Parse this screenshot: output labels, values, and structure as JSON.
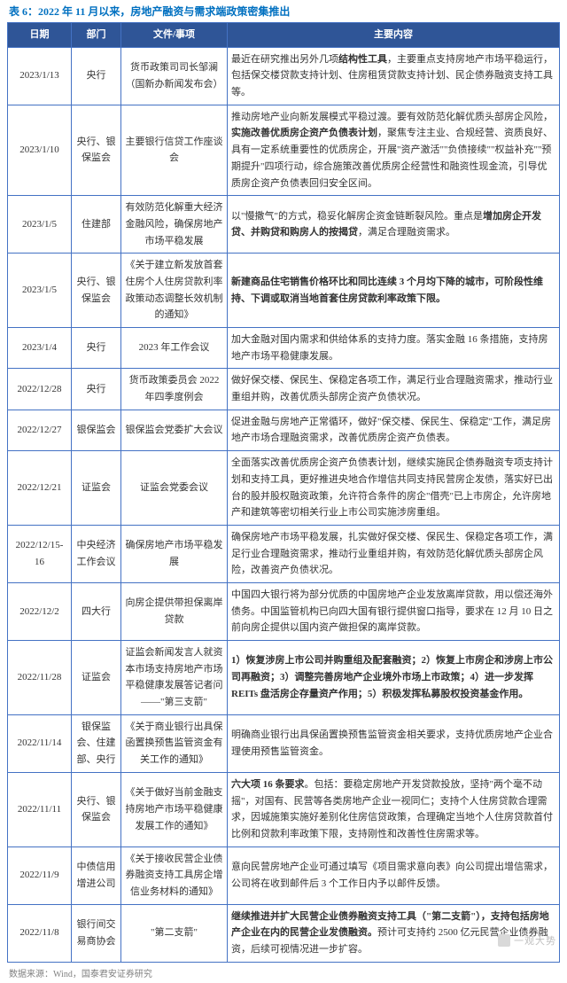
{
  "title": "表 6：2022 年 11 月以来，房地产融资与需求端政策密集推出",
  "source": "数据来源：Wind，国泰君安证券研究",
  "watermark": "一观大势",
  "headers": [
    "日期",
    "部门",
    "文件/事项",
    "主要内容"
  ],
  "colors": {
    "header_bg": "#2f5597",
    "header_fg": "#ffffff",
    "border": "#4472c4",
    "title_fg": "#0070c0",
    "body_fg": "#333333",
    "source_fg": "#808080",
    "watermark_fg": "#bfbfbf"
  },
  "rows": [
    {
      "date": "2023/1/13",
      "dept": "央行",
      "doc": "货币政策司司长邹澜（国新办新闻发布会）",
      "main_pre": "最近在研究推出另外几项",
      "main_bold1": "结构性工具",
      "main_post": "，主要重点支持房地产市场平稳运行，包括保交楼贷款支持计划、住房租赁贷款支持计划、民企债券融资支持工具等。"
    },
    {
      "date": "2023/1/10",
      "dept": "央行、银保监会",
      "doc": "主要银行信贷工作座谈会",
      "main_pre": "推动房地产业向新发展模式平稳过渡。要有效防范化解优质头部房企风险，",
      "main_bold1": "实施改善优质房企资产负债表计划",
      "main_post": "，聚焦专注主业、合规经营、资质良好、具有一定系统重要性的优质房企，开展\"资产激活\"\"负债接续\"\"权益补充\"\"预期提升\"四项行动，综合施策改善优质房企经营性和融资性现金流，引导优质房企资产负债表回归安全区间。"
    },
    {
      "date": "2023/1/5",
      "dept": "住建部",
      "doc": "有效防范化解重大经济金融风险，确保房地产市场平稳发展",
      "main_pre": "以\"慢撒气\"的方式，稳妥化解房企资金链断裂风险。重点是",
      "main_bold1": "增加房企开发贷、并购贷和购房人的按揭贷",
      "main_post": "，满足合理融资需求。"
    },
    {
      "date": "2023/1/5",
      "dept": "央行、银保监会",
      "doc": "《关于建立新发放首套住房个人住房贷款利率政策动态调整长效机制的通知》",
      "main_pre": "",
      "main_bold1": "新建商品住宅销售价格环比和同比连续 3 个月均下降的城市，可阶段性维持、下调或取消当地首套住房贷款利率政策下限。",
      "main_post": ""
    },
    {
      "date": "2023/1/4",
      "dept": "央行",
      "doc": "2023 年工作会议",
      "main_pre": "加大金融对国内需求和供给体系的支持力度。落实金融 16 条措施，支持房地产市场平稳健康发展。",
      "main_bold1": "",
      "main_post": ""
    },
    {
      "date": "2022/12/28",
      "dept": "央行",
      "doc": "货币政策委员会 2022 年四季度例会",
      "main_pre": "做好保交楼、保民生、保稳定各项工作，满足行业合理融资需求，推动行业重组并购，改善优质头部房企资产负债状况。",
      "main_bold1": "",
      "main_post": ""
    },
    {
      "date": "2022/12/27",
      "dept": "银保监会",
      "doc": "银保监会党委扩大会议",
      "main_pre": "促进金融与房地产正常循环，做好\"保交楼、保民生、保稳定\"工作，满足房地产市场合理融资需求，改善优质房企资产负债表。",
      "main_bold1": "",
      "main_post": ""
    },
    {
      "date": "2022/12/21",
      "dept": "证监会",
      "doc": "证监会党委会议",
      "main_pre": "全面落实改善优质房企资产负债表计划，继续实施民企债券融资专项支持计划和支持工具，更好推进央地合作增信共同支持民营房企发债，落实好已出台的股并股权融资政策，允许符合条件的房企\"借壳\"已上市房企，允许房地产和建筑等密切相关行业上市公司实施涉房重组。",
      "main_bold1": "",
      "main_post": ""
    },
    {
      "date": "2022/12/15-16",
      "dept": "中央经济工作会议",
      "doc": "确保房地产市场平稳发展",
      "main_pre": "确保房地产市场平稳发展，扎实做好保交楼、保民生、保稳定各项工作，满足行业合理融资需求，推动行业重组并购，有效防范化解优质头部房企风险，改善资产负债状况。",
      "main_bold1": "",
      "main_post": ""
    },
    {
      "date": "2022/12/2",
      "dept": "四大行",
      "doc": "向房企提供带担保离岸贷款",
      "main_pre": "中国四大银行将为部分优质的中国房地产企业发放离岸贷款，用以偿还海外债务。中国监管机构已向四大国有银行提供窗口指导，要求在 12 月 10 日之前向房企提供以国内资产做担保的离岸贷款。",
      "main_bold1": "",
      "main_post": ""
    },
    {
      "date": "2022/11/28",
      "dept": "证监会",
      "doc": "证监会新闻发言人就资本市场支持房地产市场平稳健康发展答记者问——\"第三支箭\"",
      "main_pre": "",
      "main_bold1": "1）恢复涉房上市公司并购重组及配套融资；2）恢复上市房企和涉房上市公司再融资；3）调整完善房地产企业境外市场上市政策；4）进一步发挥 REITs 盘活房企存量资产作用；5）积极发挥私募股权投资基金作用。",
      "main_post": ""
    },
    {
      "date": "2022/11/14",
      "dept": "银保监会、住建部、央行",
      "doc": "《关于商业银行出具保函置换预售监管资金有关工作的通知》",
      "main_pre": "明确商业银行出具保函置换预售监管资金相关要求，支持优质房地产企业合理使用预售监管资金。",
      "main_bold1": "",
      "main_post": ""
    },
    {
      "date": "2022/11/11",
      "dept": "央行、银保监会",
      "doc": "《关于做好当前金融支持房地产市场平稳健康发展工作的通知》",
      "main_pre": "",
      "main_bold1": "六大项 16 条要求",
      "main_post": "。包括：要稳定房地产开发贷款投放，坚持\"两个毫不动摇\"，对国有、民营等各类房地产企业一视同仁；支持个人住房贷款合理需求，因城施策实施好差别化住房信贷政策，合理确定当地个人住房贷款首付比例和贷款利率政策下限，支持刚性和改善性住房需求等。"
    },
    {
      "date": "2022/11/9",
      "dept": "中债信用增进公司",
      "doc": "《关于接收民营企业债券融资支持工具房企增信业务材料的通知》",
      "main_pre": "意向民营房地产企业可通过填写《项目需求意向表》向公司提出增信需求，公司将在收到邮件后 3 个工作日内予以邮件反馈。",
      "main_bold1": "",
      "main_post": ""
    },
    {
      "date": "2022/11/8",
      "dept": "银行间交易商协会",
      "doc": "\"第二支箭\"",
      "main_pre": "",
      "main_bold1": "继续推进并扩大民营企业债券融资支持工具（\"第二支箭\"），支持包括房地产企业在内的民营企业发债融资。",
      "main_post": "预计可支持约 2500 亿元民营企业债券融资，后续可视情况进一步扩容。"
    }
  ]
}
